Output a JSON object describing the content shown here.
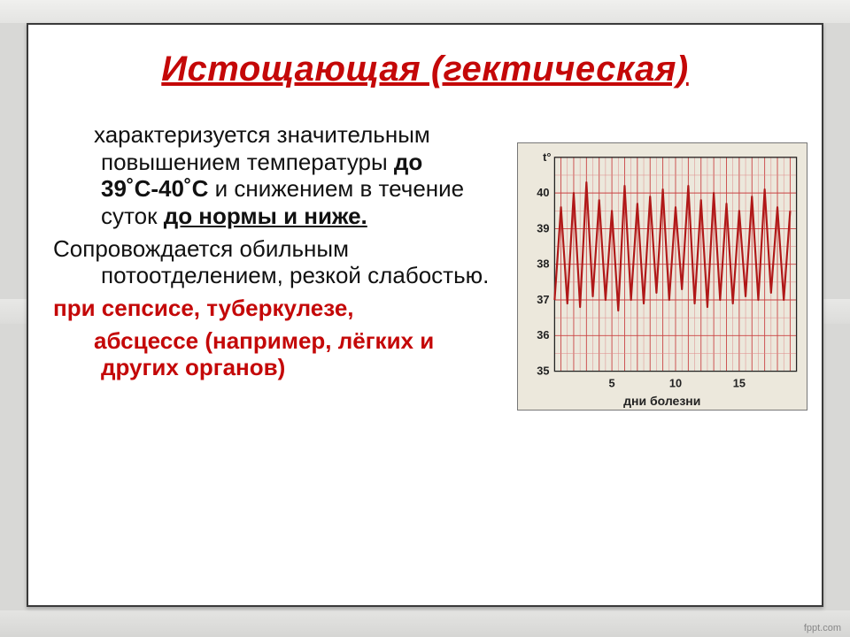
{
  "footer": "fppt.com",
  "title": "Истощающая (гектическая)",
  "para1_pre": "характеризуется значительным повышением температуры ",
  "para1_bold": "до 39˚С-40˚С",
  "para1_mid": " и снижением в течение суток ",
  "para1_uline": "до нормы и ниже.",
  "para2": "Сопровождается обильным потоотделением, резкой слабостью.",
  "para3": "при сепсисе, туберкулезе,",
  "para4": "абсцессе (например, лёгких и других органов)",
  "chart": {
    "y_label": "t°",
    "y_min": 35,
    "y_max": 41,
    "y_ticks": [
      35,
      36,
      37,
      38,
      39,
      40
    ],
    "x_ticks": [
      5,
      10,
      15
    ],
    "x_caption": "дни болезни",
    "days": 19,
    "grid_color": "#c94242",
    "subgrid_color": "#d88",
    "bg_color": "#ece8dc",
    "line_color": "#b01818",
    "axis_color": "#222",
    "label_color": "#222",
    "label_fontsize": 13,
    "series_low": [
      37.0,
      36.9,
      36.8,
      37.1,
      37.0,
      36.7,
      37.0,
      36.9,
      37.2,
      37.0,
      37.3,
      36.9,
      36.8,
      37.0,
      36.9,
      37.1,
      37.0,
      37.2,
      37.0
    ],
    "series_high": [
      39.6,
      40.0,
      40.3,
      39.8,
      39.5,
      40.2,
      39.7,
      39.9,
      40.1,
      39.6,
      40.2,
      39.8,
      40.0,
      39.7,
      39.5,
      39.9,
      40.1,
      39.6,
      39.5
    ]
  }
}
